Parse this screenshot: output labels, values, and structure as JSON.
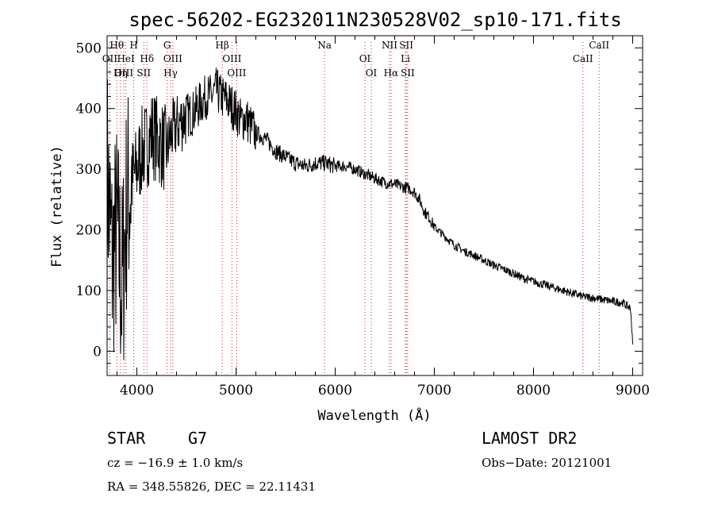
{
  "chart_data": {
    "type": "line",
    "title": "spec-56202-EG232011N230528V02_sp10-171.fits",
    "xlabel": "Wavelength (Å)",
    "ylabel": "Flux (relative)",
    "xlim": [
      3700,
      9100
    ],
    "ylim": [
      -40,
      520
    ],
    "xticks": [
      4000,
      5000,
      6000,
      7000,
      8000,
      9000
    ],
    "yticks": [
      0,
      100,
      200,
      300,
      400,
      500
    ],
    "series": [
      {
        "x": [
          3700,
          3750,
          3800,
          3850,
          3900,
          3950,
          4000,
          4050,
          4100,
          4150,
          4200,
          4250,
          4300,
          4350,
          4400,
          4450,
          4500,
          4550,
          4600,
          4650,
          4700,
          4750,
          4800,
          4850,
          4900,
          4950,
          5000,
          5050,
          5100,
          5150,
          5200,
          5300,
          5400,
          5500,
          5600,
          5700,
          5800,
          5900,
          6000,
          6100,
          6200,
          6300,
          6400,
          6500,
          6600,
          6700,
          6750,
          6800,
          6850,
          6900,
          6950,
          7000,
          7100,
          7200,
          7300,
          7400,
          7500,
          7600,
          7700,
          7800,
          7900,
          8000,
          8100,
          8200,
          8300,
          8400,
          8500,
          8600,
          8700,
          8800,
          8900,
          8980,
          9000
        ],
        "y": [
          300,
          150,
          200,
          100,
          250,
          280,
          300,
          330,
          340,
          360,
          350,
          340,
          330,
          360,
          370,
          380,
          390,
          390,
          400,
          410,
          420,
          420,
          430,
          420,
          415,
          405,
          395,
          380,
          385,
          370,
          360,
          350,
          330,
          320,
          310,
          305,
          310,
          310,
          305,
          305,
          300,
          292,
          285,
          278,
          275,
          270,
          268,
          262,
          250,
          230,
          220,
          205,
          190,
          175,
          165,
          158,
          150,
          142,
          135,
          128,
          120,
          115,
          110,
          105,
          100,
          95,
          90,
          88,
          85,
          82,
          80,
          70,
          10
        ]
      }
    ],
    "emission_lines": [
      {
        "label": "Hθ",
        "x": 3798,
        "row": 1
      },
      {
        "label": "OII",
        "x": 3727,
        "row": 2
      },
      {
        "label": "OIII",
        "x": 3869,
        "row": 3
      },
      {
        "label": "HeI",
        "x": 3889,
        "row": 2
      },
      {
        "label": "Hη",
        "x": 3835,
        "row": 3
      },
      {
        "label": "H",
        "x": 3969,
        "row": 1
      },
      {
        "label": "Hδ",
        "x": 4102,
        "row": 2
      },
      {
        "label": "SII",
        "x": 4070,
        "row": 3
      },
      {
        "label": "G",
        "x": 4305,
        "row": 1
      },
      {
        "label": "OIII",
        "x": 4363,
        "row": 2
      },
      {
        "label": "Hγ",
        "x": 4340,
        "row": 3
      },
      {
        "label": "Hβ",
        "x": 4861,
        "row": 1
      },
      {
        "label": "OIII",
        "x": 4959,
        "row": 2
      },
      {
        "label": "OIII",
        "x": 5007,
        "row": 3
      },
      {
        "label": "Na",
        "x": 5893,
        "row": 1
      },
      {
        "label": "OI",
        "x": 6300,
        "row": 2
      },
      {
        "label": "OI",
        "x": 6364,
        "row": 3
      },
      {
        "label": "NII",
        "x": 6548,
        "row": 1
      },
      {
        "label": "SII",
        "x": 6717,
        "row": 1
      },
      {
        "label": "Li",
        "x": 6708,
        "row": 2
      },
      {
        "label": "Hα",
        "x": 6563,
        "row": 3
      },
      {
        "label": "SII",
        "x": 6731,
        "row": 3
      },
      {
        "label": "CaII",
        "x": 8662,
        "row": 1
      },
      {
        "label": "CaII",
        "x": 8498,
        "row": 2
      }
    ]
  },
  "footer": {
    "class_label": "STAR",
    "subclass": "G7",
    "survey": "LAMOST DR2",
    "cz": "cz = −16.9 ± 1.0 km/s",
    "obs_date": "Obs−Date: 20121001",
    "radec": "RA = 348.55826, DEC =  22.11431"
  },
  "colors": {
    "spectrum": "#000000",
    "line_markers": "#d42020",
    "frame": "#000000"
  }
}
